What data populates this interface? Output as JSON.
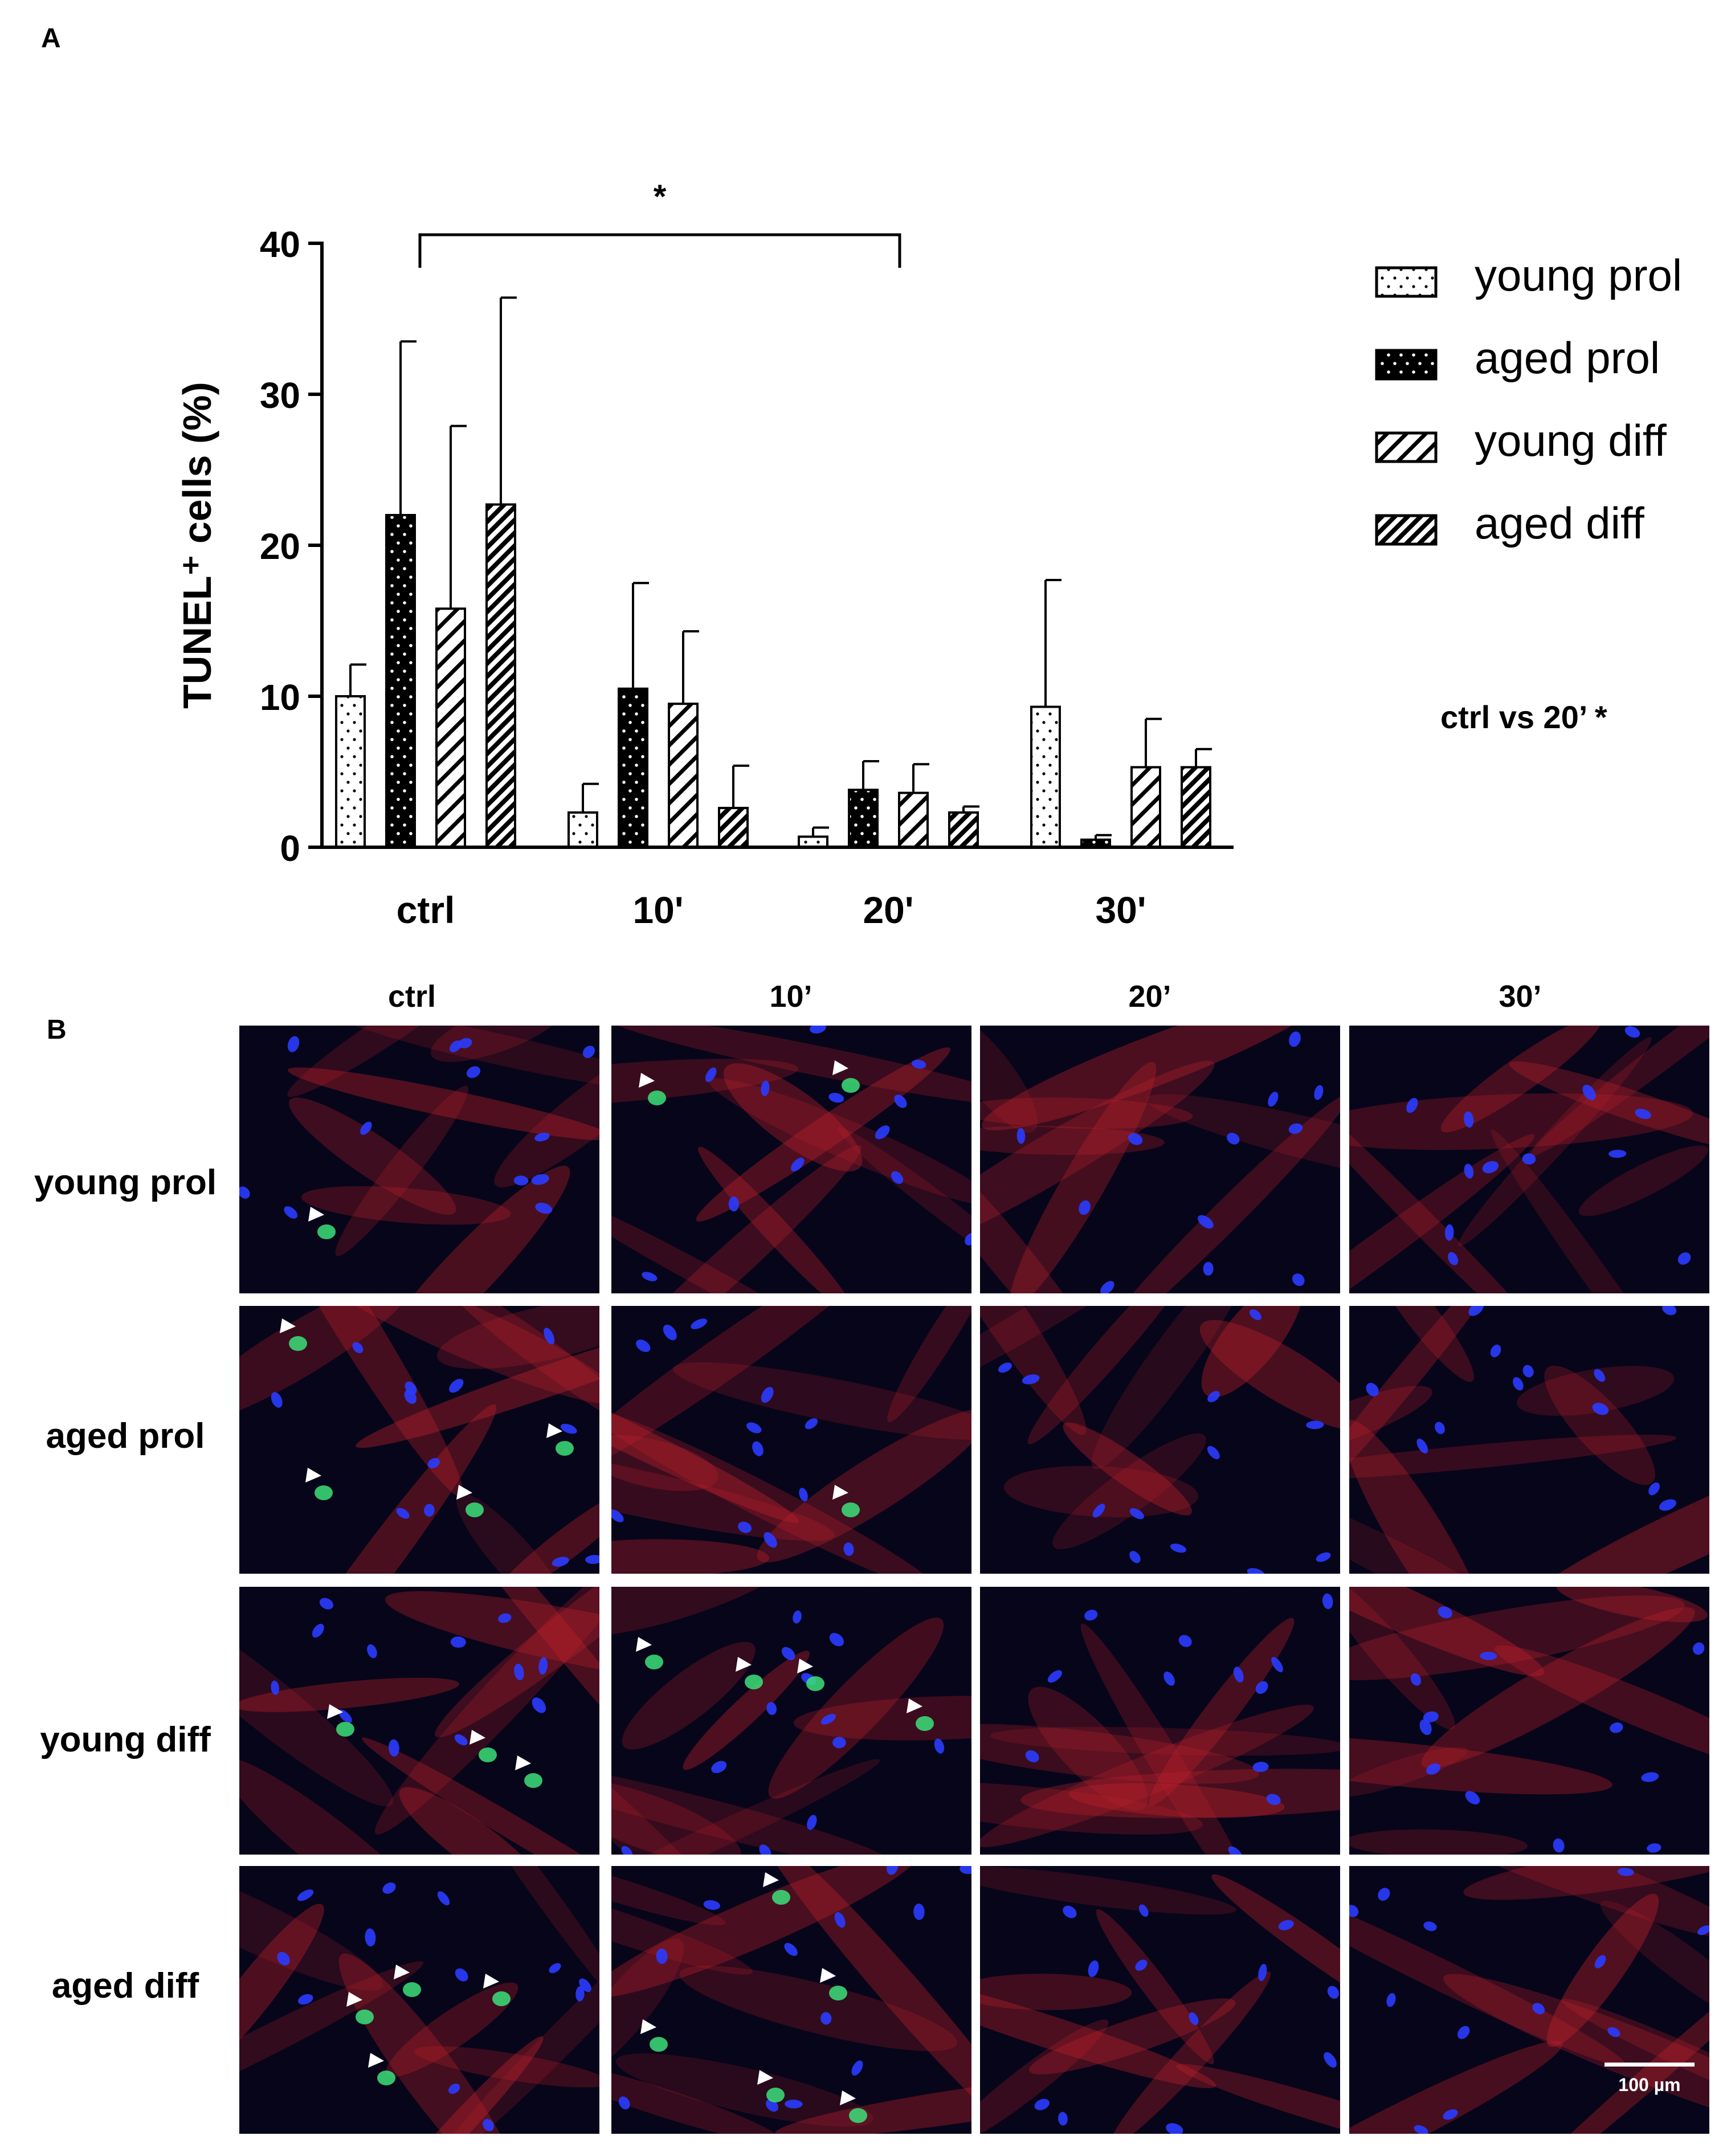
{
  "panel_a": {
    "letter": "A"
  },
  "panel_b": {
    "letter": "B",
    "columns": [
      "ctrl",
      "10’",
      "20’",
      "30’"
    ],
    "rows": [
      "young prol",
      "aged prol",
      "young diff",
      "aged diff"
    ],
    "channel_colors": {
      "actin": "#c0202a",
      "nuclei": "#2a3cff",
      "tunel": "#3ce07a",
      "background": "#07051a"
    },
    "arrow_icon": "white-triangle-arrowhead",
    "scale_bar": "100 µm"
  },
  "chart_data": {
    "type": "bar",
    "title": "",
    "xlabel": "",
    "ylabel": "TUNEL⁺ cells (%)",
    "ylim": [
      0,
      40
    ],
    "yticks": [
      0,
      10,
      20,
      30,
      40
    ],
    "categories": [
      "ctrl",
      "10'",
      "20'",
      "30'"
    ],
    "series": [
      {
        "name": "young prol",
        "pattern": "dots-on-white",
        "values": [
          10.0,
          2.3,
          0.7,
          9.3
        ],
        "errors": [
          2.1,
          1.9,
          0.6,
          8.4
        ]
      },
      {
        "name": "aged prol",
        "pattern": "dots-on-black",
        "values": [
          22.0,
          10.5,
          3.8,
          0.5
        ],
        "errors": [
          11.5,
          7.0,
          1.9,
          0.3
        ]
      },
      {
        "name": "young diff",
        "pattern": "sparse-hatch",
        "values": [
          15.8,
          9.5,
          3.6,
          5.3
        ],
        "errors": [
          12.1,
          4.8,
          1.9,
          3.2
        ]
      },
      {
        "name": "aged diff",
        "pattern": "dense-hatch",
        "values": [
          22.7,
          2.6,
          2.3,
          5.3
        ],
        "errors": [
          13.7,
          2.8,
          0.4,
          1.2
        ]
      }
    ],
    "significance": {
      "from_category": "ctrl",
      "to_category": "20'",
      "label": "*"
    },
    "legend_position": "right",
    "annotation": "ctrl vs 20’ *",
    "grid": false
  }
}
